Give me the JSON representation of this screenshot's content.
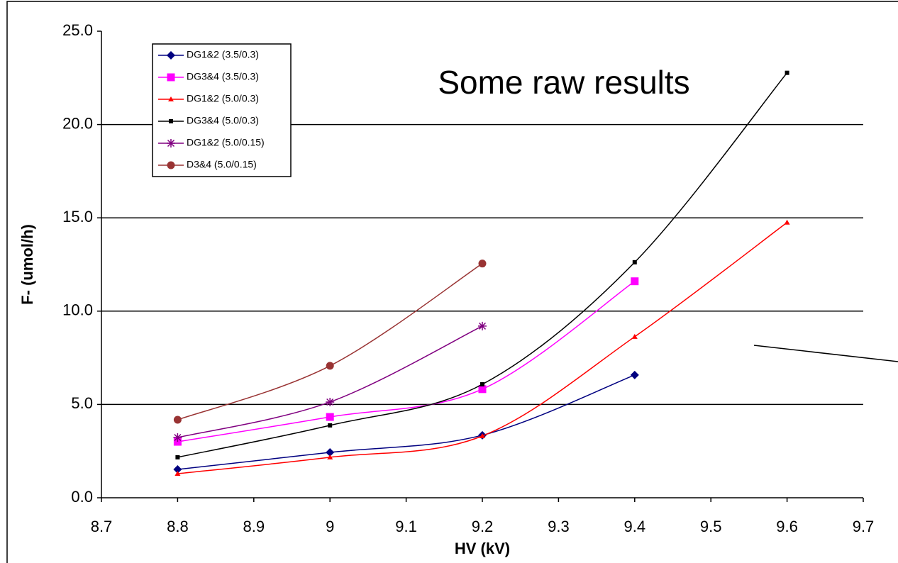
{
  "chart_data": {
    "type": "line",
    "title": "Some raw  results",
    "x_label": "HV (kV)",
    "y_label": "F- (umol/h)",
    "xlim": [
      8.7,
      9.7
    ],
    "xticks": [
      8.7,
      8.8,
      8.9,
      9,
      9.1,
      9.2,
      9.3,
      9.4,
      9.5,
      9.6,
      9.7
    ],
    "ylim": [
      0,
      25
    ],
    "yticks": [
      {
        "value": 0,
        "label": "0.0"
      },
      {
        "value": 5,
        "label": "5.0"
      },
      {
        "value": 10,
        "label": "10.0"
      },
      {
        "value": 15,
        "label": "15.0"
      },
      {
        "value": 20,
        "label": "20.0"
      },
      {
        "value": 25,
        "label": "25.0"
      }
    ],
    "grid": true,
    "smooth": true,
    "legend": "top-left",
    "series": [
      {
        "name": "DG1&2 (3.5/0.3)",
        "color": "#000080",
        "marker": "diamond",
        "x": [
          8.8,
          9,
          9.2,
          9.4
        ],
        "values": [
          1.52,
          2.43,
          3.35,
          6.58
        ]
      },
      {
        "name": "DG3&4 (3.5/0.3)",
        "color": "#ff00ff",
        "marker": "square",
        "x": [
          8.8,
          9,
          9.2,
          9.4
        ],
        "values": [
          3.0,
          4.33,
          5.82,
          11.6
        ]
      },
      {
        "name": "DG1&2 (5.0/0.3)",
        "color": "#ff0000",
        "marker": "triangle",
        "x": [
          8.8,
          9,
          9.2,
          9.4,
          9.6
        ],
        "values": [
          1.29,
          2.17,
          3.31,
          8.63,
          14.75
        ]
      },
      {
        "name": "DG3&4 (5.0/0.3)",
        "color": "#000000",
        "marker": "small-square",
        "x": [
          8.8,
          9,
          9.2,
          9.4,
          9.6
        ],
        "values": [
          2.17,
          3.88,
          6.08,
          12.62,
          22.77
        ]
      },
      {
        "name": "DG1&2 (5.0/0.15)",
        "color": "#800080",
        "marker": "star",
        "x": [
          8.8,
          9,
          9.2
        ],
        "values": [
          3.23,
          5.13,
          9.2
        ]
      },
      {
        "name": "D3&4 (5.0/0.15)",
        "color": "#993333",
        "marker": "circle",
        "x": [
          8.8,
          9,
          9.2
        ],
        "values": [
          4.18,
          7.07,
          12.55
        ]
      }
    ]
  }
}
